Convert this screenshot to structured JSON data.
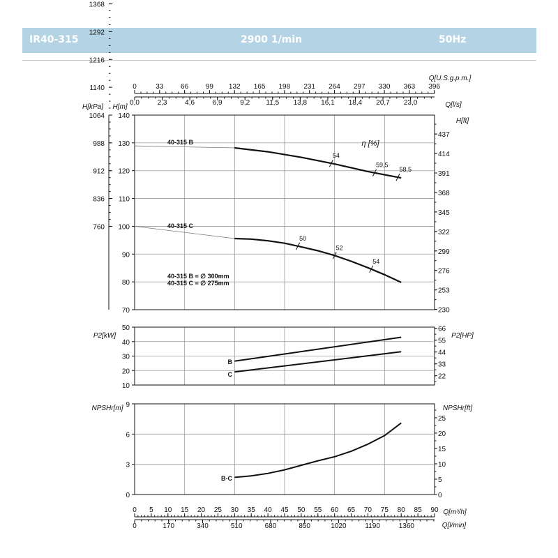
{
  "header": {
    "model": "IR40-315",
    "speed": "2900 1/min",
    "frequency": "50Hz",
    "color": "#b4d3e4"
  },
  "axes": {
    "gpm_label": "Q[U.S.g.p.m.]",
    "gpm_ticks": [
      "0",
      "33",
      "66",
      "99",
      "132",
      "165",
      "198",
      "231",
      "264",
      "297",
      "330",
      "363",
      "396"
    ],
    "ls_label": "Q[l/s]",
    "ls_ticks": [
      "0,0",
      "2,3",
      "4,6",
      "6,9",
      "9,2",
      "11,5",
      "13,8",
      "16,1",
      "18,4",
      "20,7",
      "23,0"
    ],
    "m3h_label": "Q[m³/h]",
    "m3h_ticks": [
      "0",
      "5",
      "10",
      "15",
      "20",
      "25",
      "30",
      "35",
      "40",
      "45",
      "50",
      "55",
      "60",
      "65",
      "70",
      "75",
      "80",
      "85",
      "90"
    ],
    "lmin_label": "Q[l/min]",
    "lmin_ticks": [
      "0",
      "170",
      "340",
      "510",
      "680",
      "850",
      "1020",
      "1190",
      "1360"
    ],
    "kpa_label": "H[kPa]",
    "kpa_ticks": [
      "1368",
      "1292",
      "1216",
      "1140",
      "1064",
      "988",
      "912",
      "836",
      "760"
    ],
    "hm_label": "H[m]",
    "hm_ticks": [
      "140",
      "130",
      "120",
      "110",
      "100",
      "90",
      "80",
      "70"
    ],
    "hft_label": "H[ft]",
    "hft_ticks": [
      "437",
      "414",
      "391",
      "368",
      "345",
      "322",
      "299",
      "276",
      "253",
      "230"
    ],
    "p2kw_label": "P2[kW]",
    "p2kw_ticks": [
      "50",
      "40",
      "30",
      "20",
      "10"
    ],
    "p2hp_label": "P2[HP]",
    "p2hp_ticks": [
      "66",
      "55",
      "44",
      "33",
      "22"
    ],
    "npshm_label": "NPSHr[m]",
    "npshm_ticks": [
      "9",
      "6",
      "3",
      "0"
    ],
    "npshft_label": "NPSHr[ft]",
    "npshft_ticks": [
      "25",
      "20",
      "15",
      "10",
      "5",
      "0"
    ]
  },
  "labels": {
    "eta": "η [%]",
    "curve_b": "40-315 B",
    "curve_c": "40-315 C",
    "legend_b": "40-315 B = ∅ 300mm",
    "legend_c": "40-315 C = ∅ 275mm",
    "power_b": "B",
    "power_c": "C",
    "npsh_bc": "B-C"
  },
  "chart_data": [
    {
      "type": "line",
      "xlabel": "Q[m³/h]",
      "ylabel": "H[m]",
      "ylim": [
        70,
        140
      ],
      "xlim": [
        0,
        90
      ],
      "grid": true,
      "series": [
        {
          "name": "40-315 B",
          "x": [
            30,
            40,
            50,
            60,
            70,
            80
          ],
          "y": [
            128.2,
            126.8,
            124.8,
            122.4,
            119.7,
            117.4
          ],
          "extension_from": [
            0,
            128.9
          ]
        },
        {
          "name": "40-315 C",
          "x": [
            30,
            35,
            40,
            45,
            50,
            55,
            60,
            65,
            70,
            75,
            80
          ],
          "y": [
            95.6,
            95.4,
            94.8,
            93.9,
            92.6,
            91.2,
            89.5,
            87.4,
            85.1,
            82.6,
            79.8
          ],
          "extension_from": [
            0,
            100
          ]
        }
      ],
      "efficiency_marks": [
        {
          "curve": "40-315 B",
          "x": 59,
          "label": "54"
        },
        {
          "curve": "40-315 B",
          "x": 72,
          "label": "59,5"
        },
        {
          "curve": "40-315 B",
          "x": 79,
          "label": "58,5"
        },
        {
          "curve": "40-315 C",
          "x": 49,
          "label": "50"
        },
        {
          "curve": "40-315 C",
          "x": 60,
          "label": "52"
        },
        {
          "curve": "40-315 C",
          "x": 71,
          "label": "54"
        }
      ]
    },
    {
      "type": "line",
      "xlabel": "Q[m³/h]",
      "ylabel": "P2[kW]",
      "ylim": [
        10,
        50
      ],
      "xlim": [
        0,
        90
      ],
      "grid": true,
      "series": [
        {
          "name": "B",
          "x": [
            30,
            80
          ],
          "y": [
            26.5,
            43.0
          ]
        },
        {
          "name": "C",
          "x": [
            30,
            80
          ],
          "y": [
            19.0,
            33.0
          ]
        }
      ]
    },
    {
      "type": "line",
      "xlabel": "Q[m³/h]",
      "ylabel": "NPSHr[m]",
      "ylim": [
        0,
        9
      ],
      "xlim": [
        0,
        90
      ],
      "grid": true,
      "series": [
        {
          "name": "B-C",
          "x": [
            30,
            35,
            40,
            45,
            50,
            55,
            60,
            65,
            70,
            75,
            80
          ],
          "y": [
            1.7,
            1.85,
            2.1,
            2.45,
            2.9,
            3.35,
            3.75,
            4.3,
            5.0,
            5.85,
            7.1
          ]
        }
      ]
    }
  ]
}
